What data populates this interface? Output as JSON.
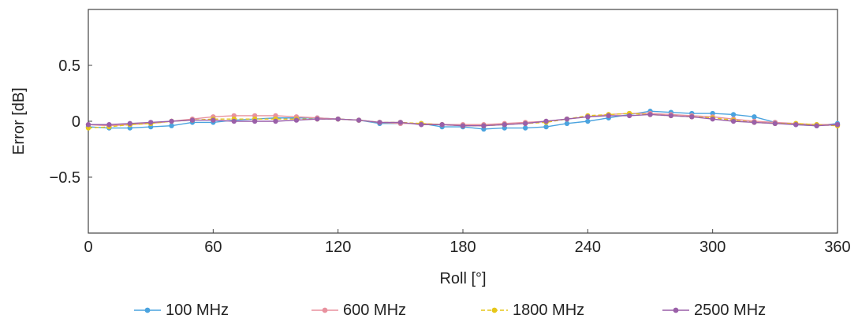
{
  "chart_data": {
    "type": "line",
    "xlabel": "Roll [°]",
    "ylabel": "Error [dB]",
    "xlim": [
      0,
      360
    ],
    "ylim": [
      -1,
      1
    ],
    "xticks": [
      0,
      60,
      120,
      180,
      240,
      300,
      360
    ],
    "xtick_labels": [
      "0",
      "60",
      "120",
      "180",
      "240",
      "300",
      "360"
    ],
    "yticks": [
      0.5,
      0,
      -0.5
    ],
    "ytick_labels": [
      "0.5",
      "0",
      "−0.5"
    ],
    "grid": false,
    "legend_position": "bottom",
    "x": [
      0,
      10,
      20,
      30,
      40,
      50,
      60,
      70,
      80,
      90,
      100,
      110,
      120,
      130,
      140,
      150,
      160,
      170,
      180,
      190,
      200,
      210,
      220,
      230,
      240,
      250,
      260,
      270,
      280,
      290,
      300,
      310,
      320,
      330,
      340,
      350,
      360
    ],
    "series": [
      {
        "name": "100 MHz",
        "color": "#4aa3df",
        "marker": "circle",
        "dash": "solid",
        "values": [
          -0.05,
          -0.06,
          -0.06,
          -0.05,
          -0.04,
          -0.01,
          -0.01,
          0.01,
          0.02,
          0.03,
          0.03,
          0.03,
          0.02,
          0.01,
          -0.02,
          -0.02,
          -0.02,
          -0.05,
          -0.05,
          -0.07,
          -0.06,
          -0.06,
          -0.05,
          -0.02,
          0.0,
          0.03,
          0.06,
          0.09,
          0.08,
          0.07,
          0.07,
          0.06,
          0.04,
          -0.01,
          -0.03,
          -0.04,
          -0.02
        ]
      },
      {
        "name": "600 MHz",
        "color": "#e8919e",
        "marker": "circle",
        "dash": "solid",
        "values": [
          -0.03,
          -0.04,
          -0.03,
          -0.02,
          0.0,
          0.02,
          0.04,
          0.05,
          0.05,
          0.05,
          0.04,
          0.03,
          0.02,
          0.01,
          -0.01,
          -0.02,
          -0.02,
          -0.03,
          -0.03,
          -0.03,
          -0.02,
          -0.01,
          0.0,
          0.02,
          0.04,
          0.06,
          0.07,
          0.07,
          0.06,
          0.05,
          0.04,
          0.02,
          0.0,
          -0.01,
          -0.02,
          -0.03,
          -0.03
        ]
      },
      {
        "name": "1800 MHz",
        "color": "#e6c619",
        "marker": "circle",
        "dash": "dashed",
        "values": [
          -0.06,
          -0.05,
          -0.03,
          -0.02,
          0.0,
          0.01,
          0.02,
          0.02,
          0.02,
          0.02,
          0.02,
          0.02,
          0.02,
          0.01,
          -0.01,
          -0.01,
          -0.02,
          -0.03,
          -0.04,
          -0.04,
          -0.03,
          -0.02,
          -0.01,
          0.02,
          0.05,
          0.06,
          0.07,
          0.06,
          0.05,
          0.04,
          0.03,
          0.01,
          -0.01,
          -0.02,
          -0.02,
          -0.03,
          -0.04
        ]
      },
      {
        "name": "2500 MHz",
        "color": "#9a5fa8",
        "marker": "circle",
        "dash": "solid",
        "values": [
          -0.03,
          -0.03,
          -0.02,
          -0.01,
          0.0,
          0.01,
          0.01,
          0.0,
          0.0,
          0.0,
          0.01,
          0.02,
          0.02,
          0.01,
          -0.01,
          -0.01,
          -0.03,
          -0.03,
          -0.04,
          -0.04,
          -0.03,
          -0.02,
          0.0,
          0.02,
          0.04,
          0.05,
          0.05,
          0.06,
          0.05,
          0.04,
          0.02,
          0.0,
          -0.01,
          -0.02,
          -0.03,
          -0.04,
          -0.03
        ]
      }
    ]
  }
}
